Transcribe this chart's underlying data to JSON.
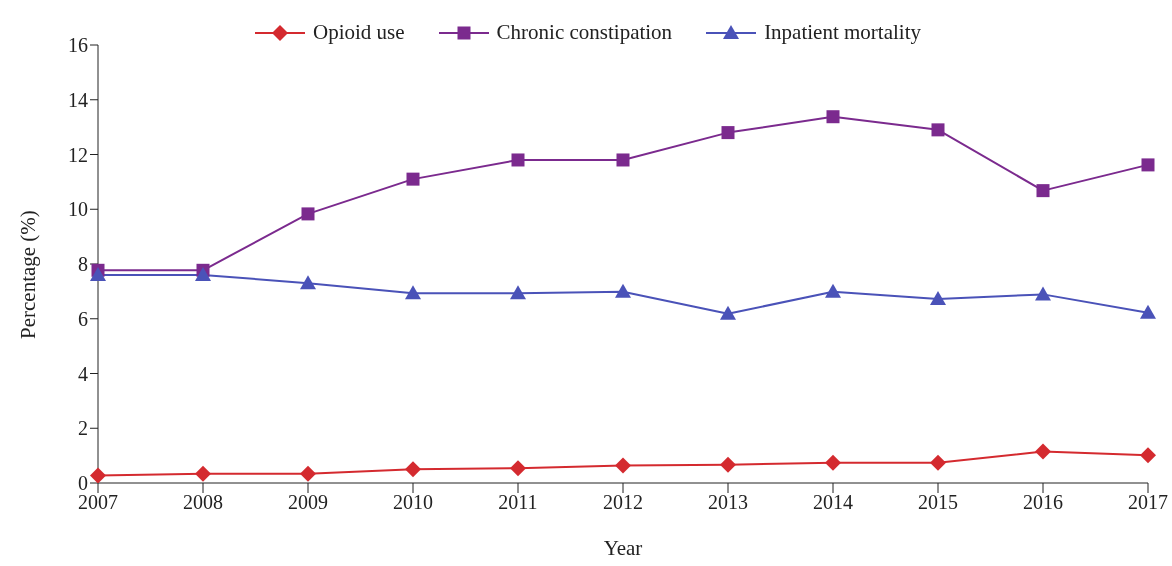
{
  "chart_data": {
    "type": "line",
    "xlabel": "Year",
    "ylabel": "Percentage (%)",
    "categories": [
      "2007",
      "2008",
      "2009",
      "2010",
      "2011",
      "2012",
      "2013",
      "2014",
      "2015",
      "2016",
      "2017"
    ],
    "series": [
      {
        "name": "Opioid use",
        "color": "#d42a2f",
        "marker": "diamond",
        "values": [
          0.27,
          0.34,
          0.34,
          0.5,
          0.54,
          0.64,
          0.67,
          0.74,
          0.74,
          1.15,
          1.01
        ]
      },
      {
        "name": "Chronic constipation",
        "color": "#7b2a8e",
        "marker": "square",
        "values": [
          7.77,
          7.77,
          9.83,
          11.1,
          11.8,
          11.8,
          12.8,
          13.38,
          12.9,
          10.68,
          11.62
        ]
      },
      {
        "name": "Inpatient mortality",
        "color": "#4a52b8",
        "marker": "triangle",
        "values": [
          7.6,
          7.6,
          7.3,
          6.93,
          6.93,
          6.99,
          6.18,
          6.99,
          6.72,
          6.89,
          6.22
        ]
      }
    ],
    "ylim": [
      0,
      16
    ],
    "yticks": [
      0,
      2,
      4,
      6,
      8,
      10,
      12,
      14,
      16
    ],
    "grid": false,
    "legend": "top",
    "line_style": "solid"
  }
}
